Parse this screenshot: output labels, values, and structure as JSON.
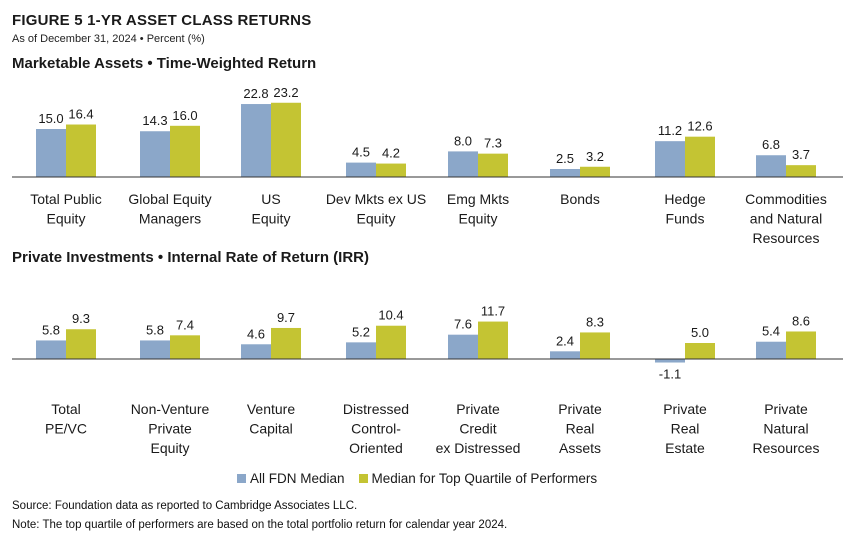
{
  "figure": {
    "title": "FIGURE 5   1-YR ASSET CLASS RETURNS",
    "subtitle": "As of December 31, 2024 • Percent (%)"
  },
  "colors": {
    "median": "#8ba7c9",
    "top_quartile": "#c4c433"
  },
  "legend": [
    {
      "label": "All FDN Median",
      "color": "#8ba7c9"
    },
    {
      "label": "Median for Top Quartile of Performers",
      "color": "#c4c433"
    }
  ],
  "chart_data": [
    {
      "type": "bar",
      "title": "Marketable Assets • Time-Weighted Return",
      "categories": [
        "Total Public\nEquity",
        "Global Equity\nManagers",
        "US\nEquity",
        "Dev Mkts ex US\nEquity",
        "Emg Mkts\nEquity",
        "Bonds",
        "Hedge\nFunds",
        "Commodities\nand Natural\nResources"
      ],
      "series": [
        {
          "name": "All FDN Median",
          "values": [
            15.0,
            14.3,
            22.8,
            4.5,
            8.0,
            2.5,
            11.2,
            6.8
          ]
        },
        {
          "name": "Median for Top Quartile of Performers",
          "values": [
            16.4,
            16.0,
            23.2,
            4.2,
            7.3,
            3.2,
            12.6,
            3.7
          ]
        }
      ]
    },
    {
      "type": "bar",
      "title": "Private Investments • Internal Rate of Return (IRR)",
      "categories": [
        "Total\nPE/VC",
        "Non-Venture\nPrivate\nEquity",
        "Venture\nCapital",
        "Distressed\nControl-\nOriented",
        "Private\nCredit\nex Distressed",
        "Private\nReal\nAssets",
        "Private\nReal\nEstate",
        "Private\nNatural\nResources"
      ],
      "series": [
        {
          "name": "All FDN Median",
          "values": [
            5.8,
            5.8,
            4.6,
            5.2,
            7.6,
            2.4,
            -1.1,
            5.4
          ]
        },
        {
          "name": "Median for Top Quartile of Performers",
          "values": [
            9.3,
            7.4,
            9.7,
            10.4,
            11.7,
            8.3,
            5.0,
            8.6
          ]
        }
      ]
    }
  ],
  "footer": {
    "source": "Source: Foundation data as reported to Cambridge Associates LLC.",
    "note": "Note: The top quartile of performers are based on the total portfolio return for calendar year 2024."
  }
}
